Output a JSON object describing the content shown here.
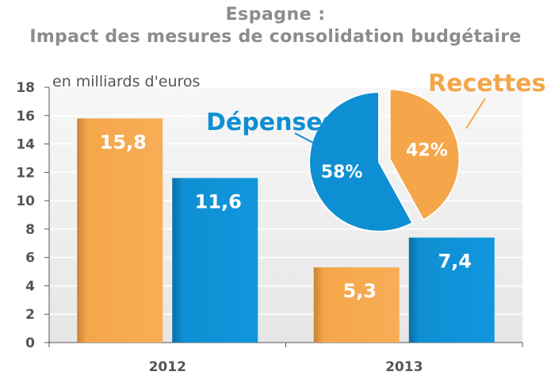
{
  "title": "Espagne :",
  "subtitle": "Impact des mesures de consolidation budgétaire",
  "unit_label": "en milliards d'euros",
  "colors": {
    "recettes": "#f5a64a",
    "depenses": "#0f8fd3",
    "title": "#8c8c8c",
    "axis": "#555555",
    "plot_bg": "#ececec"
  },
  "chart_data": [
    {
      "type": "bar",
      "categories": [
        "2012",
        "2013"
      ],
      "series": [
        {
          "name": "Recettes",
          "values": [
            15.8,
            5.3
          ],
          "labels": [
            "15,8",
            "5,3"
          ]
        },
        {
          "name": "Dépenses",
          "values": [
            11.6,
            7.4
          ],
          "labels": [
            "11,6",
            "7,4"
          ]
        }
      ],
      "ylim": [
        0,
        18
      ],
      "yticks": [
        0,
        2,
        4,
        6,
        8,
        10,
        12,
        14,
        16,
        18
      ],
      "ylabel": "en milliards d'euros",
      "grid": true
    },
    {
      "type": "pie",
      "labels": [
        "Dépenses",
        "Recettes"
      ],
      "values": [
        58,
        42
      ],
      "value_labels": [
        "58%",
        "42%"
      ]
    }
  ]
}
